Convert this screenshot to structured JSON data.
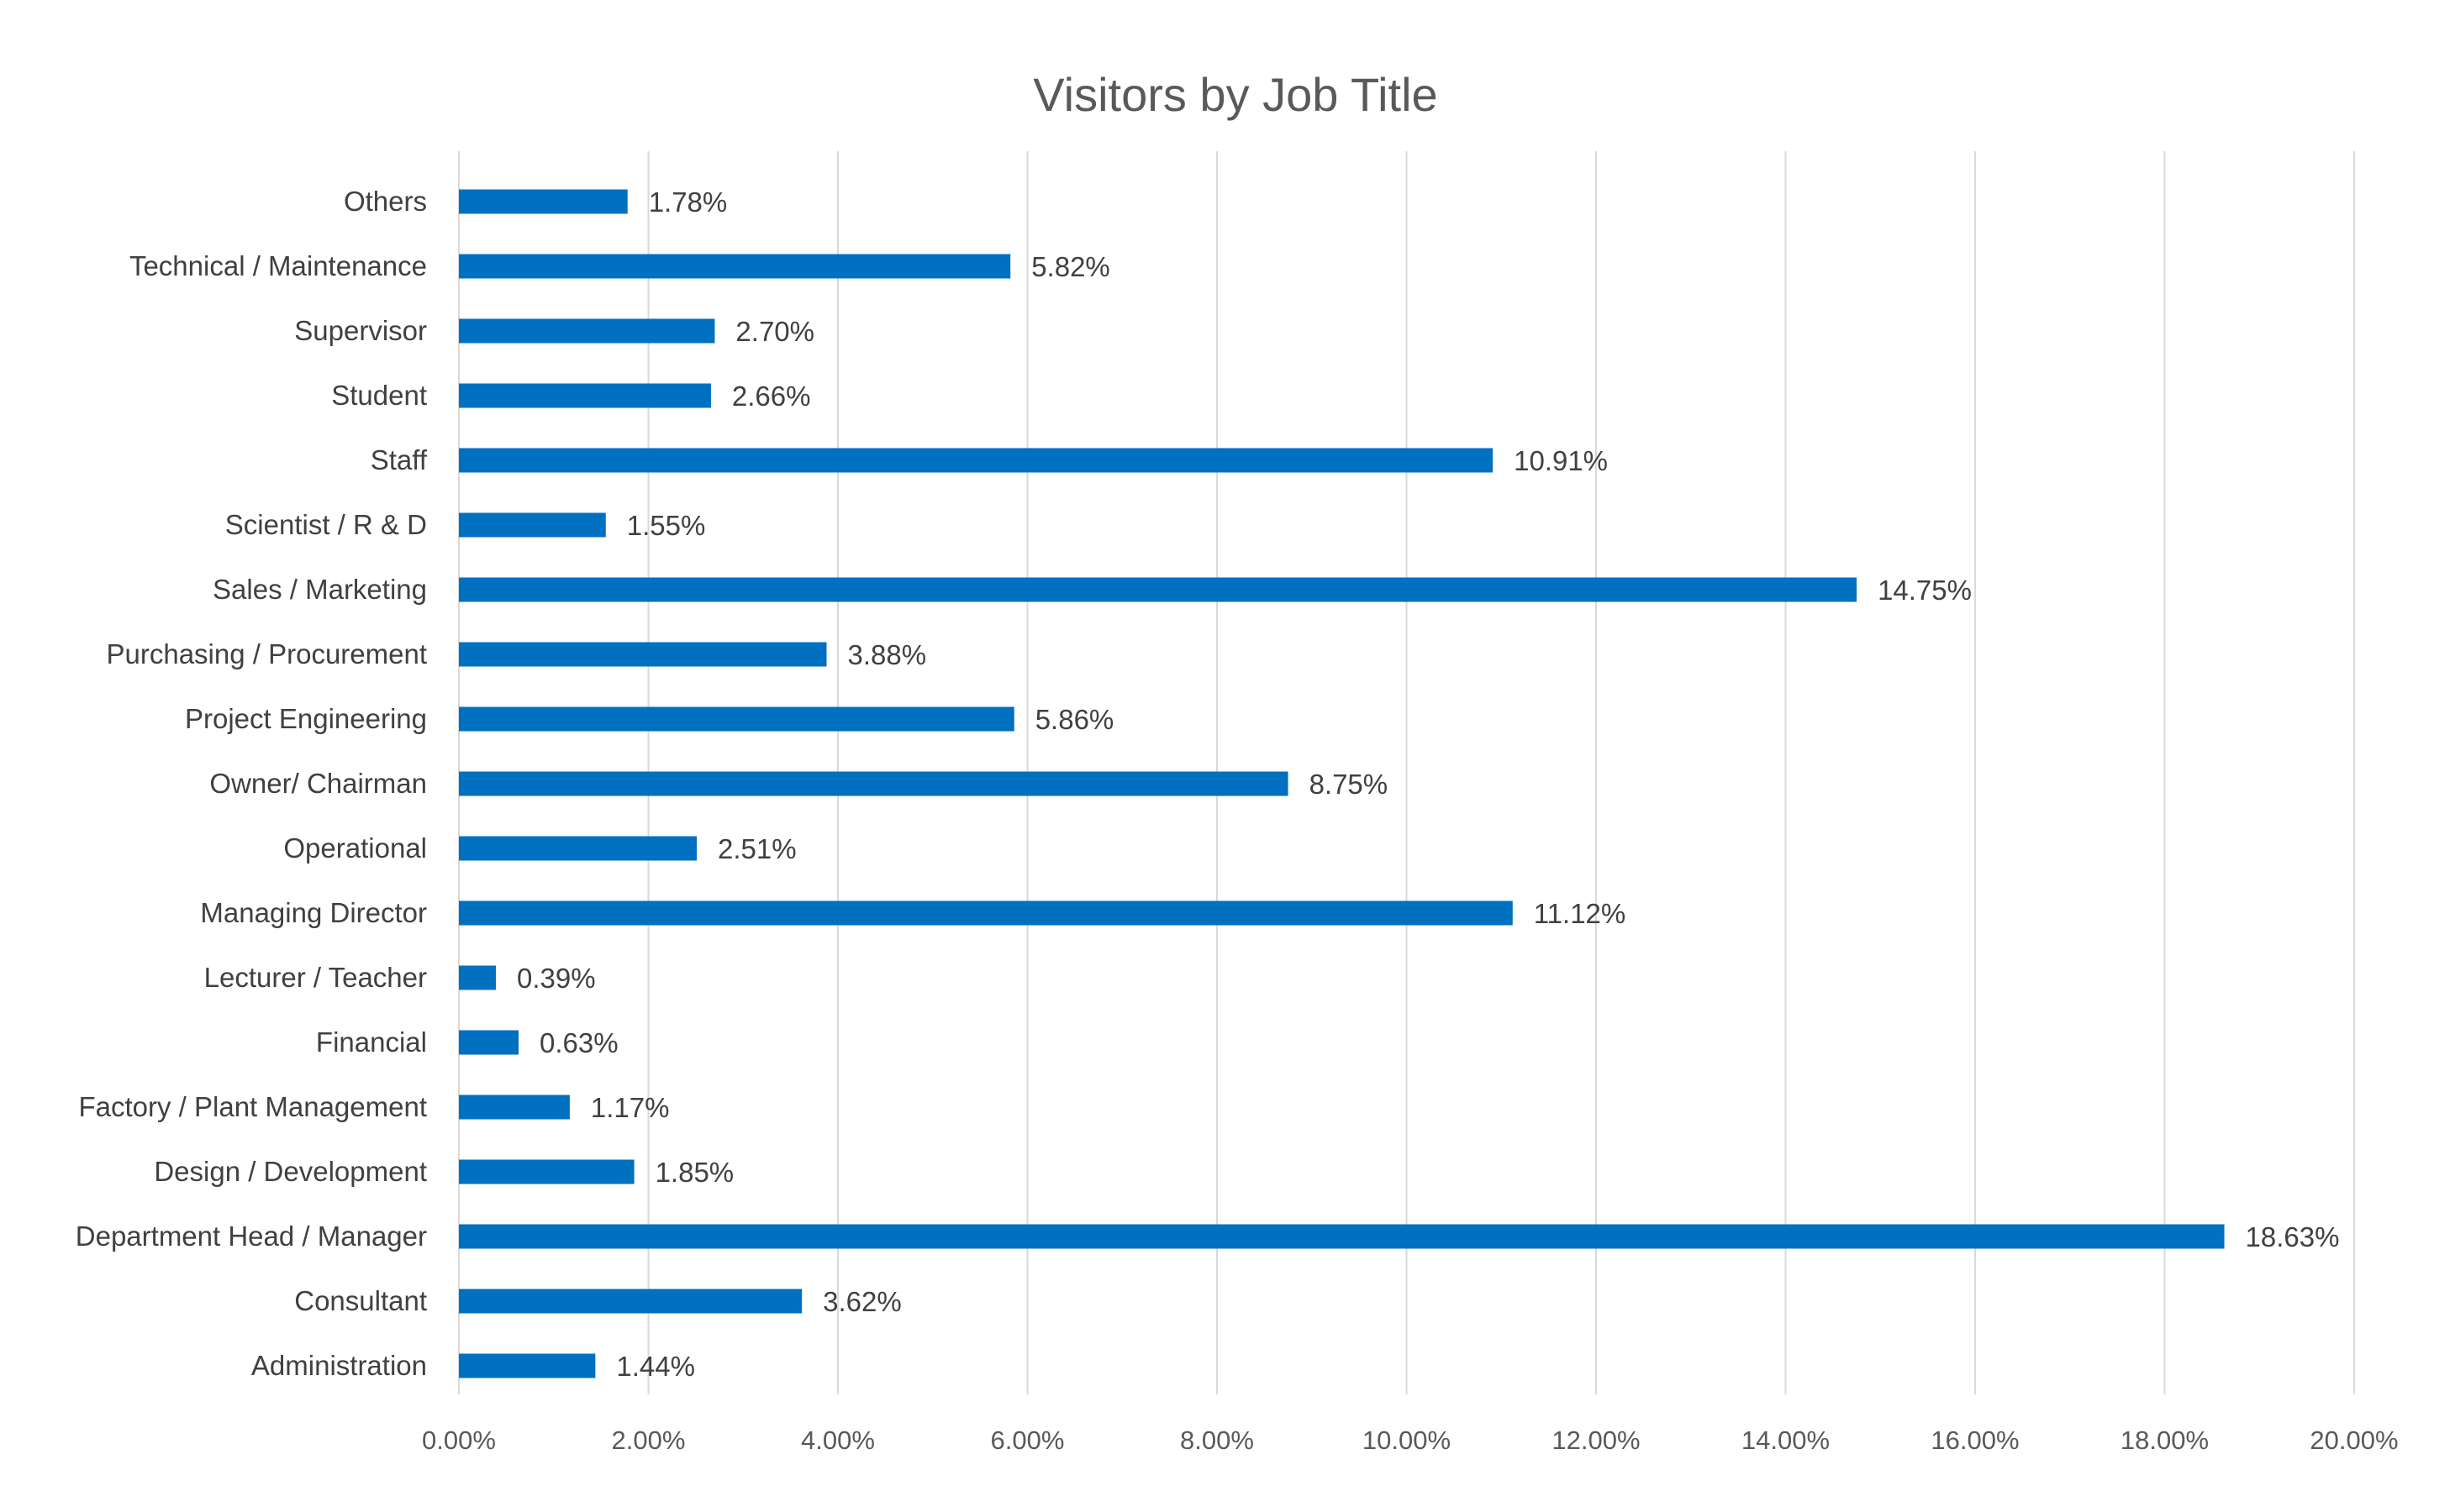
{
  "chart_data": {
    "type": "bar",
    "orientation": "horizontal",
    "title": "Visitors by Job Title",
    "xlabel": "",
    "ylabel": "",
    "xlim": [
      0,
      20
    ],
    "x_ticks": [
      0,
      2,
      4,
      6,
      8,
      10,
      12,
      14,
      16,
      18,
      20
    ],
    "tick_labels": [
      "0.00%",
      "2.00%",
      "4.00%",
      "6.00%",
      "8.00%",
      "10.00%",
      "12.00%",
      "14.00%",
      "16.00%",
      "18.00%",
      "20.00%"
    ],
    "grid": true,
    "legend": "none",
    "bar_color": "#0070C0",
    "categories": [
      "Others",
      "Technical / Maintenance",
      "Supervisor",
      "Student",
      "Staff",
      "Scientist / R & D",
      "Sales / Marketing",
      "Purchasing / Procurement",
      "Project Engineering",
      "Owner/ Chairman",
      "Operational",
      "Managing Director",
      "Lecturer / Teacher",
      "Financial",
      "Factory / Plant Management",
      "Design / Development",
      "Department Head / Manager",
      "Consultant",
      "Administration"
    ],
    "values": [
      1.78,
      5.82,
      2.7,
      2.66,
      10.91,
      1.55,
      14.75,
      3.88,
      5.86,
      8.75,
      2.51,
      11.12,
      0.39,
      0.63,
      1.17,
      1.85,
      18.63,
      3.62,
      1.44
    ],
    "data_labels": [
      "1.78%",
      "5.82%",
      "2.70%",
      "2.66%",
      "10.91%",
      "1.55%",
      "14.75%",
      "3.88%",
      "5.86%",
      "8.75%",
      "2.51%",
      "11.12%",
      "0.39%",
      "0.63%",
      "1.17%",
      "1.85%",
      "18.63%",
      "3.62%",
      "1.44%"
    ]
  }
}
